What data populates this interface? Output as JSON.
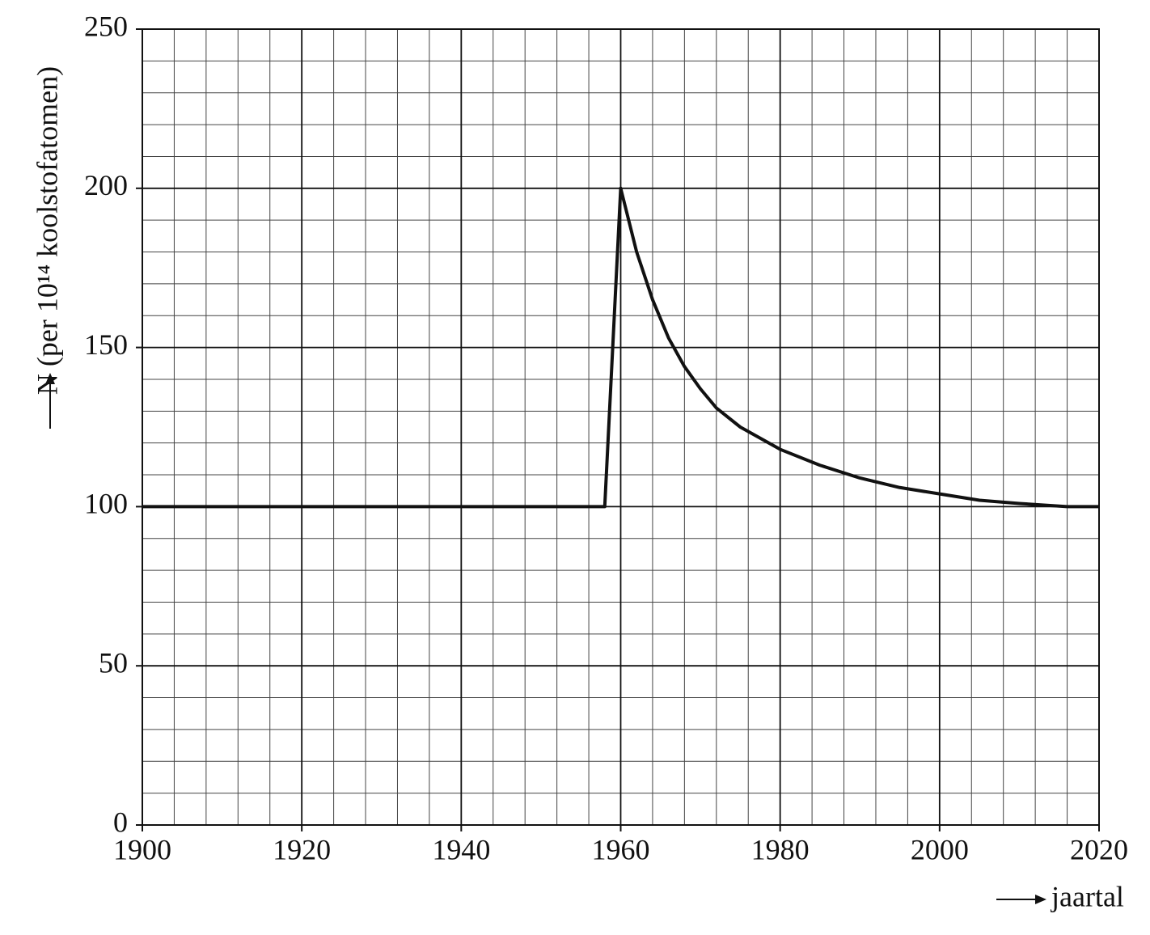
{
  "chart_data": {
    "type": "line",
    "xlabel": "jaartal",
    "ylabel": "N (per 10¹⁴ koolstofatomen)",
    "x": [
      1900,
      1958,
      1960,
      1962,
      1964,
      1966,
      1968,
      1970,
      1972,
      1975,
      1980,
      1985,
      1990,
      1995,
      2000,
      2005,
      2010,
      2016,
      2020
    ],
    "series": [
      {
        "color": "#111111",
        "values": [
          100,
          100,
          200,
          180,
          165,
          153,
          144,
          137,
          131,
          125,
          118,
          113,
          109,
          106,
          104,
          102,
          101,
          100,
          100
        ]
      }
    ],
    "xlim": [
      1900,
      2020
    ],
    "xticks": [
      1900,
      1920,
      1940,
      1960,
      1980,
      2000,
      2020
    ],
    "ylim": [
      0,
      250
    ],
    "yticks": [
      0,
      50,
      100,
      150,
      200,
      250
    ],
    "grid": true,
    "x_minor_step": 4,
    "y_minor_step": 10
  }
}
